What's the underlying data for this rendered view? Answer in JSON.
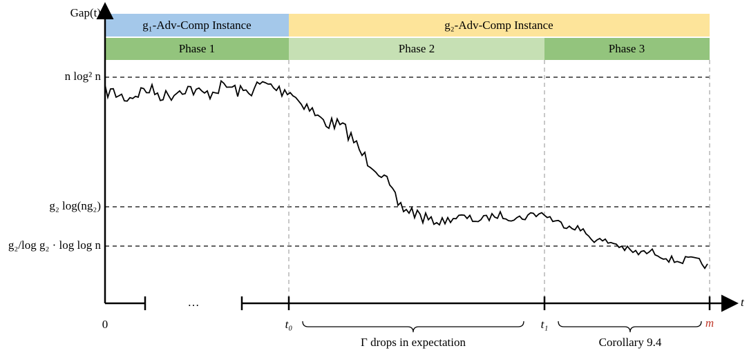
{
  "y_axis_label": "Gap(t)",
  "instances": [
    "g₁-Adv-Comp Instance",
    "g₂-Adv-Comp Instance"
  ],
  "phases": [
    "Phase 1",
    "Phase 2",
    "Phase 3"
  ],
  "levels": [
    "n log² n",
    "g₂ log(ng₂)",
    "g₂/log g₂ · log log n"
  ],
  "x_axis_label": "t",
  "x_labels": [
    "0",
    "…",
    "t₀",
    "t₁",
    "m"
  ],
  "braces": [
    "Γ drops in expectation",
    "Corollary 9.4"
  ]
}
